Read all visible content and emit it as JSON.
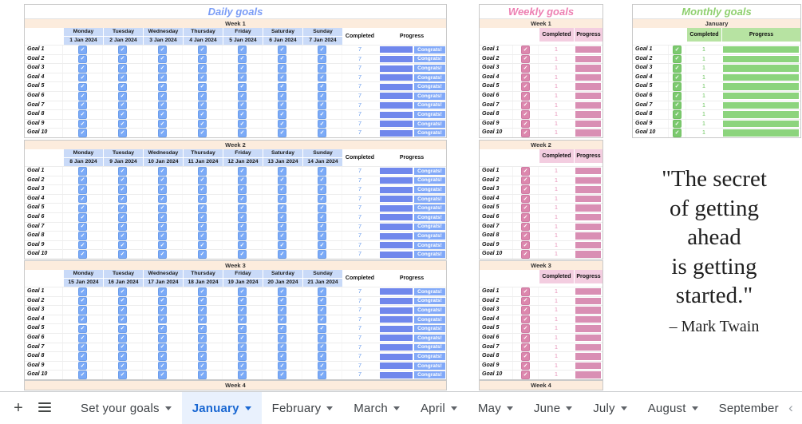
{
  "daily": {
    "title": "Daily goals",
    "day_names": [
      "Monday",
      "Tuesday",
      "Wednesday",
      "Thursday",
      "Friday",
      "Saturday",
      "Sunday"
    ],
    "completed_header": "Completed",
    "progress_header": "Progress",
    "completed_value": "7",
    "progress_label": "Congrats!",
    "goals": [
      "Goal 1",
      "Goal 2",
      "Goal 3",
      "Goal 4",
      "Goal 5",
      "Goal 6",
      "Goal 7",
      "Goal 8",
      "Goal 9",
      "Goal 10"
    ],
    "weeks": [
      {
        "label": "Week 1",
        "dates": [
          "1 Jan 2024",
          "2 Jan 2024",
          "3 Jan 2024",
          "4 Jan 2024",
          "5 Jan 2024",
          "6 Jan 2024",
          "7 Jan 2024"
        ]
      },
      {
        "label": "Week 2",
        "dates": [
          "8 Jan 2024",
          "9 Jan 2024",
          "10 Jan 2024",
          "11 Jan 2024",
          "12 Jan 2024",
          "13 Jan 2024",
          "14 Jan 2024"
        ]
      },
      {
        "label": "Week 3",
        "dates": [
          "15 Jan 2024",
          "16 Jan 2024",
          "17 Jan 2024",
          "18 Jan 2024",
          "19 Jan 2024",
          "20 Jan 2024",
          "21 Jan 2024"
        ]
      },
      {
        "label": "Week 4",
        "partial": true
      }
    ]
  },
  "weekly": {
    "title": "Weekly goals",
    "completed_header": "Completed",
    "progress_header": "Progress",
    "completed_value": "1",
    "goals": [
      "Goal 1",
      "Goal 2",
      "Goal 3",
      "Goal 4",
      "Goal 5",
      "Goal 6",
      "Goal 7",
      "Goal 8",
      "Goal 9",
      "Goal 10"
    ],
    "weeks": [
      {
        "label": "Week 1"
      },
      {
        "label": "Week 2"
      },
      {
        "label": "Week 3"
      },
      {
        "label": "Week 4",
        "partial": true
      }
    ]
  },
  "monthly": {
    "title": "Monthly goals",
    "completed_header": "Completed",
    "progress_header": "Progress",
    "completed_value": "1",
    "goals": [
      "Goal 1",
      "Goal 2",
      "Goal 3",
      "Goal 4",
      "Goal 5",
      "Goal 6",
      "Goal 7",
      "Goal 8",
      "Goal 9",
      "Goal 10"
    ],
    "weeks": [
      {
        "label": "January"
      }
    ]
  },
  "quote": {
    "lines": [
      "\"The secret",
      "of getting",
      "ahead",
      "is getting",
      "started.\""
    ],
    "author": "– Mark Twain"
  },
  "tabbar": {
    "add_icon_glyph": "+",
    "scroll_left_glyph": "‹",
    "tabs": [
      {
        "label": "Set your goals",
        "active": false
      },
      {
        "label": "January",
        "active": true
      },
      {
        "label": "February",
        "active": false
      },
      {
        "label": "March",
        "active": false
      },
      {
        "label": "April",
        "active": false
      },
      {
        "label": "May",
        "active": false
      },
      {
        "label": "June",
        "active": false
      },
      {
        "label": "July",
        "active": false
      },
      {
        "label": "August",
        "active": false
      },
      {
        "label": "September",
        "active": false,
        "clipped": true
      }
    ]
  },
  "colors": {
    "week_band_bg": "#fcecdd",
    "daily": {
      "title": "#7b9df6",
      "header_bg": "#c9daf8",
      "checkbox": "#7baaf7",
      "checkbox_border": "#6d9eeb",
      "value_text": "#6d9eeb",
      "bar": "#7087ec",
      "congrats_bg": "#82a9f8"
    },
    "weekly": {
      "title": "#ed7fb2",
      "header_bg": "#f3cde0",
      "checkbox": "#dc87ad",
      "checkbox_border": "#cf7aa3",
      "value_text": "#e795ba",
      "bar": "#d98fb4"
    },
    "monthly": {
      "title": "#8fd06f",
      "header_bg": "#b7e3a2",
      "checkbox": "#7cc96f",
      "checkbox_border": "#6fbf60",
      "value_text": "#6fc661",
      "bar": "#8cd47d"
    },
    "tab_text": "#3f4347",
    "tab_active_text": "#1967d2",
    "tab_active_bg": "#e9f1fd"
  }
}
